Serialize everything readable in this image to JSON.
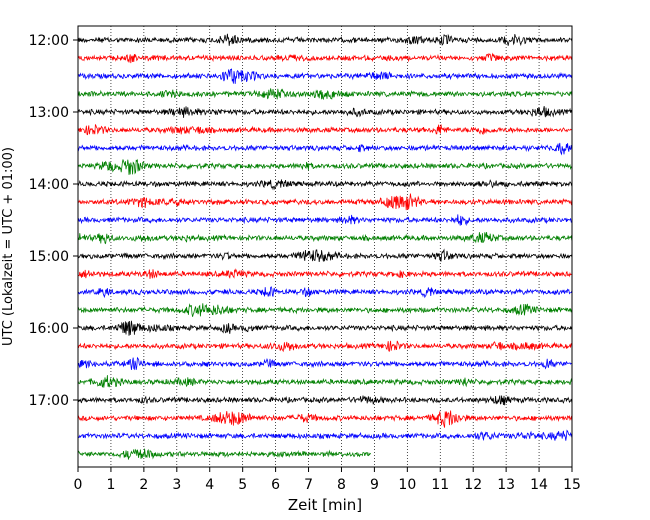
{
  "chart_data": {
    "type": "line",
    "title": "",
    "xlabel": "Zeit  [min]",
    "ylabel": "UTC (Lokalzeit = UTC + 01:00)",
    "xlim": [
      0,
      15
    ],
    "x_ticks": [
      0,
      1,
      2,
      3,
      4,
      5,
      6,
      7,
      8,
      9,
      10,
      11,
      12,
      13,
      14,
      15
    ],
    "x_tick_labels": [
      "0",
      "1",
      "2",
      "3",
      "4",
      "5",
      "6",
      "7",
      "8",
      "9",
      "10",
      "11",
      "12",
      "13",
      "14",
      "15"
    ],
    "y_tick_labels": [
      "12:00",
      "13:00",
      "14:00",
      "15:00",
      "16:00",
      "17:00"
    ],
    "row_interval_minutes": 15,
    "grid": "vertical dotted",
    "color_cycle": [
      "#000000",
      "#ff0000",
      "#0000ff",
      "#008000"
    ],
    "series": [
      {
        "start": "12:00",
        "end_min": 15
      },
      {
        "start": "12:15",
        "end_min": 15
      },
      {
        "start": "12:30",
        "end_min": 15
      },
      {
        "start": "12:45",
        "end_min": 15
      },
      {
        "start": "13:00",
        "end_min": 15
      },
      {
        "start": "13:15",
        "end_min": 15
      },
      {
        "start": "13:30",
        "end_min": 15
      },
      {
        "start": "13:45",
        "end_min": 15
      },
      {
        "start": "14:00",
        "end_min": 15
      },
      {
        "start": "14:15",
        "end_min": 15
      },
      {
        "start": "14:30",
        "end_min": 15
      },
      {
        "start": "14:45",
        "end_min": 15
      },
      {
        "start": "15:00",
        "end_min": 15
      },
      {
        "start": "15:15",
        "end_min": 15
      },
      {
        "start": "15:30",
        "end_min": 15
      },
      {
        "start": "15:45",
        "end_min": 15
      },
      {
        "start": "16:00",
        "end_min": 15
      },
      {
        "start": "16:15",
        "end_min": 15
      },
      {
        "start": "16:30",
        "end_min": 15
      },
      {
        "start": "16:45",
        "end_min": 15
      },
      {
        "start": "17:00",
        "end_min": 15
      },
      {
        "start": "17:15",
        "end_min": 15
      },
      {
        "start": "17:30",
        "end_min": 15
      },
      {
        "start": "17:45",
        "end_min": 8.9
      }
    ]
  }
}
